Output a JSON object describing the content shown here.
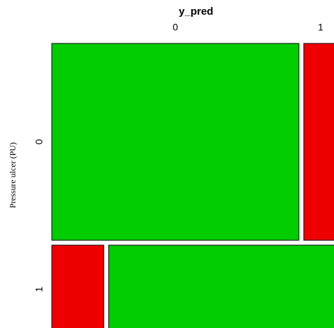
{
  "chart_data": {
    "type": "mosaic",
    "xlabel": "y_pred",
    "ylabel": "Pressure ulcer (PU)",
    "rows": [
      "0",
      "1"
    ],
    "columns": [
      "0",
      "1"
    ],
    "row_fractions": [
      0.69,
      0.31
    ],
    "values": [
      [
        0.88,
        0.12
      ],
      [
        0.185,
        0.815
      ]
    ],
    "colors": [
      [
        "#00cc00",
        "#ee0000"
      ],
      [
        "#ee0000",
        "#00cc00"
      ]
    ]
  }
}
